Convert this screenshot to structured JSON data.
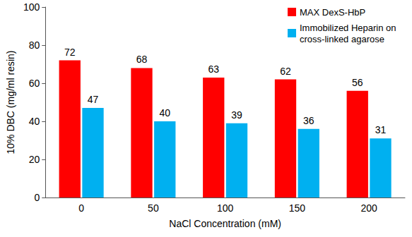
{
  "chart_data": {
    "type": "bar",
    "x_label": "NaCl Concentration (mM)",
    "y_label": "10% DBC (mg/ml resin)",
    "categories": [
      "0",
      "50",
      "100",
      "150",
      "200"
    ],
    "series": [
      {
        "name": "MAX DexS-HbP",
        "color": "#ff0000",
        "values": [
          72,
          68,
          63,
          62,
          56
        ]
      },
      {
        "name": "Immobilized Heparin on cross-linked agarose",
        "color": "#00b0f0",
        "values": [
          47,
          40,
          39,
          36,
          31
        ]
      }
    ],
    "ylim": [
      0,
      100
    ],
    "yticks": [
      0,
      20,
      40,
      60,
      80,
      100
    ],
    "grid": false,
    "legend": "upper right",
    "data_labels": true
  }
}
